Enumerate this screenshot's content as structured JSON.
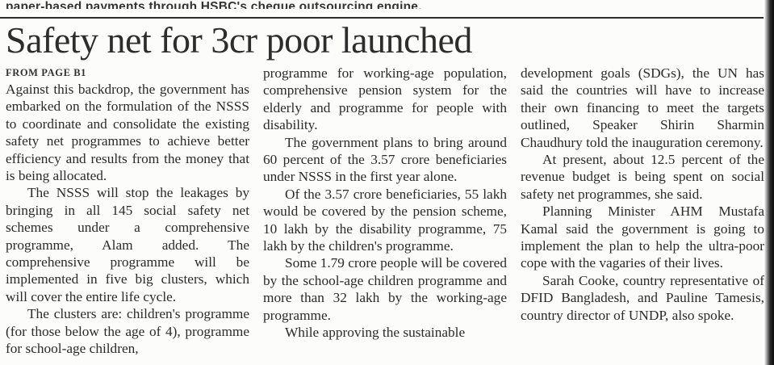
{
  "page": {
    "clipped_top_line": "paper-based payments through HSBC's cheque outsourcing engine.",
    "headline": "Safety net for 3cr poor launched",
    "kicker": "FROM PAGE B1"
  },
  "article": {
    "columns": [
      {
        "paragraphs": [
          "Against this backdrop, the government has embarked on the formulation of the NSSS to coordinate and consolidate the existing safety net programmes to achieve better efficiency and results from the money that is being allocated.",
          "The NSSS will stop the leakages by bringing in all 145 social safety net schemes under a comprehensive programme, Alam added. The comprehensive programme will be implemented in five big clusters, which will cover the entire life cycle.",
          "The clusters are: children's programme (for those below the age of 4), programme for school-age children,"
        ]
      },
      {
        "paragraphs": [
          "programme for working-age population, comprehensive pension system for the elderly and programme for people with disability.",
          "The government plans to bring around 60 percent of the 3.57 crore beneficiaries under NSSS in the first year alone.",
          "Of the 3.57 crore beneficiaries, 55 lakh would be covered by the pension scheme, 10 lakh by the disability programme, 75 lakh by the children's programme.",
          "Some 1.79 crore people will be covered by the school-age children programme and more than 32 lakh by the working-age programme.",
          "While approving the sustainable"
        ]
      },
      {
        "paragraphs": [
          "development goals (SDGs), the UN has said the countries will have to increase their own financing to meet the targets outlined, Speaker Shirin Sharmin Chaudhury told the inauguration ceremony.",
          "At present, about 12.5 percent of the revenue budget is being spent on social safety net programmes, she said.",
          "Planning Minister AHM Mustafa Kamal said the government is going to implement the plan to help the ultra-poor cope with the vagaries of their lives.",
          "Sarah Cooke, country representative of DFID Bangladesh, and Pauline Tamesis, country director of UNDP, also spoke."
        ]
      }
    ]
  }
}
